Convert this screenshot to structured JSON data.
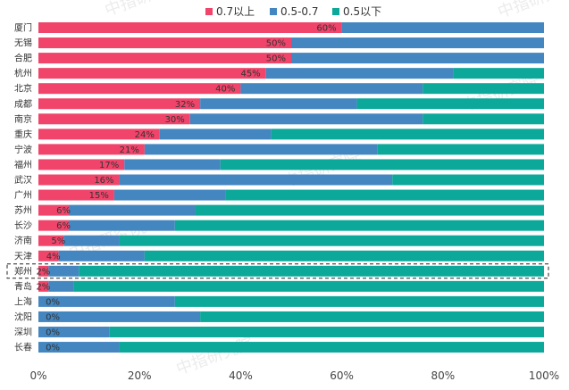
{
  "chart_data": {
    "type": "bar",
    "orientation": "horizontal",
    "stacked": true,
    "categories": [
      "厦门",
      "无锡",
      "合肥",
      "杭州",
      "北京",
      "成都",
      "南京",
      "重庆",
      "宁波",
      "福州",
      "武汉",
      "广州",
      "苏州",
      "长沙",
      "济南",
      "天津",
      "郑州",
      "青岛",
      "上海",
      "沈阳",
      "深圳",
      "长春"
    ],
    "series": [
      {
        "name": "0.7以上",
        "color": "#F0446B",
        "values": [
          60,
          50,
          50,
          45,
          40,
          32,
          30,
          24,
          21,
          17,
          16,
          15,
          6,
          6,
          5,
          4,
          2,
          2,
          0,
          0,
          0,
          0
        ]
      },
      {
        "name": "0.5-0.7",
        "color": "#4486C0",
        "values": [
          40,
          50,
          50,
          37,
          36,
          31,
          46,
          22,
          46,
          19,
          54,
          22,
          25,
          21,
          11,
          17,
          6,
          5,
          27,
          32,
          14,
          16
        ]
      },
      {
        "name": "0.5以下",
        "color": "#0CA89A",
        "values": [
          0,
          0,
          0,
          18,
          24,
          37,
          24,
          54,
          33,
          64,
          30,
          63,
          69,
          73,
          84,
          79,
          92,
          93,
          73,
          68,
          86,
          84
        ]
      }
    ],
    "data_labels": [
      "60%",
      "50%",
      "50%",
      "45%",
      "40%",
      "32%",
      "30%",
      "24%",
      "21%",
      "17%",
      "16%",
      "15%",
      "6%",
      "6%",
      "5%",
      "4%",
      "2%",
      "2%",
      "0%",
      "0%",
      "0%",
      "0%"
    ],
    "x_ticks": [
      "0%",
      "20%",
      "40%",
      "60%",
      "80%",
      "100%"
    ],
    "xlim": [
      0,
      100
    ],
    "highlighted_category": "郑州",
    "legend_position": "top",
    "watermark": "中指研究院"
  }
}
